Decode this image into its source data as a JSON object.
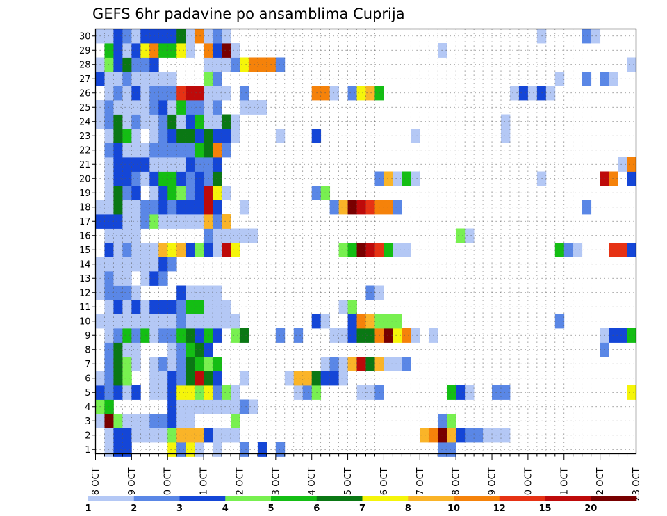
{
  "chart_data": {
    "type": "heatmap",
    "title": "GEFS 6hr padavine po ansamblima Cuprija",
    "xlabel": "",
    "ylabel": "",
    "x_ticks": [
      "08 OCT",
      "09 OCT",
      "10 OCT",
      "11 OCT",
      "12 OCT",
      "13 OCT",
      "14 OCT",
      "15 OCT",
      "16 OCT",
      "17 OCT",
      "18 OCT",
      "19 OCT",
      "20 OCT",
      "21 OCT",
      "22 OCT",
      "23 OCT"
    ],
    "y_ticks": [
      "1",
      "2",
      "3",
      "4",
      "5",
      "6",
      "7",
      "8",
      "9",
      "10",
      "11",
      "12",
      "13",
      "14",
      "15",
      "16",
      "17",
      "18",
      "19",
      "20",
      "21",
      "22",
      "23",
      "24",
      "25",
      "26",
      "27",
      "28",
      "29",
      "30"
    ],
    "time_steps_per_day": 4,
    "time_steps": 60,
    "members": 30,
    "grid": true,
    "colorbar": {
      "position": "bottom",
      "labels": [
        "1",
        "2",
        "3",
        "4",
        "5",
        "6",
        "7",
        "8",
        "10",
        "12",
        "15",
        "20"
      ],
      "colors": [
        "#b4c8f5",
        "#5a87e6",
        "#1446d7",
        "#78f050",
        "#14be14",
        "#0a7814",
        "#f5f50a",
        "#fab428",
        "#f5820a",
        "#e63214",
        "#be0a0a",
        "#780000"
      ]
    },
    "values": {
      "1": {
        "1": 1,
        "2": 3,
        "3": 3,
        "8": 7,
        "9": 2,
        "10": 7,
        "11": 1,
        "12": 14,
        "13": 1,
        "16": 2,
        "18": 3,
        "20": 2,
        "38": 2,
        "39": 2
      },
      "2": {
        "1": 1,
        "2": 3,
        "3": 3,
        "4": 1,
        "5": 1,
        "6": 1,
        "7": 1,
        "8": 4,
        "9": 8,
        "10": 8,
        "11": 8,
        "12": 3,
        "13": 1,
        "14": 1,
        "15": 1,
        "36": 8,
        "37": 9,
        "38": 12,
        "39": 8,
        "40": 3,
        "41": 2,
        "42": 2,
        "43": 1,
        "44": 1,
        "45": 1
      },
      "3": {
        "0": 1,
        "1": 12,
        "2": 4,
        "3": 1,
        "4": 1,
        "5": 1,
        "6": 2,
        "7": 2,
        "8": 3,
        "9": 1,
        "10": 1,
        "15": 4,
        "38": 2,
        "39": 4
      },
      "4": {
        "0": 4,
        "1": 5,
        "8": 3,
        "9": 1,
        "10": 1,
        "11": 1,
        "12": 1,
        "13": 1,
        "14": 1,
        "15": 1,
        "16": 2,
        "17": 1
      },
      "5": {
        "0": 3,
        "1": 2,
        "2": 3,
        "3": 1,
        "4": 3,
        "6": 1,
        "7": 1,
        "8": 3,
        "9": 7,
        "10": 7,
        "11": 4,
        "12": 7,
        "13": 2,
        "14": 4,
        "15": 1,
        "22": 1,
        "23": 2,
        "24": 4,
        "29": 1,
        "30": 1,
        "31": 2,
        "39": 5,
        "40": 3,
        "41": 1,
        "44": 2,
        "45": 2,
        "59": 7
      },
      "6": {
        "0": 1,
        "1": 2,
        "2": 6,
        "3": 4,
        "6": 1,
        "7": 1,
        "8": 3,
        "9": 2,
        "10": 6,
        "11": 11,
        "12": 6,
        "13": 3,
        "16": 1,
        "21": 1,
        "22": 8,
        "23": 8,
        "24": 6,
        "25": 3,
        "26": 3,
        "27": 1
      },
      "7": {
        "1": 2,
        "2": 6,
        "3": 4,
        "4": 1,
        "6": 1,
        "7": 2,
        "8": 1,
        "9": 2,
        "10": 6,
        "11": 5,
        "12": 4,
        "13": 5,
        "25": 1,
        "26": 2,
        "27": 1,
        "28": 8,
        "29": 11,
        "30": 6,
        "31": 8,
        "32": 1,
        "33": 1,
        "34": 2
      },
      "8": {
        "1": 2,
        "2": 6,
        "3": 1,
        "4": 1,
        "8": 1,
        "9": 2,
        "10": 5,
        "11": 6,
        "12": 3,
        "56": 2
      },
      "9": {
        "1": 1,
        "2": 2,
        "3": 5,
        "4": 2,
        "5": 5,
        "6": 1,
        "7": 2,
        "8": 2,
        "9": 5,
        "10": 6,
        "11": 3,
        "12": 5,
        "13": 3,
        "15": 4,
        "16": 6,
        "20": 2,
        "22": 2,
        "26": 1,
        "27": 1,
        "28": 3,
        "29": 6,
        "30": 6,
        "31": 9,
        "32": 12,
        "33": 7,
        "34": 9,
        "35": 1,
        "37": 1,
        "56": 1,
        "57": 3,
        "58": 3,
        "59": 5
      },
      "10": {
        "0": 1,
        "1": 1,
        "2": 1,
        "3": 1,
        "4": 1,
        "5": 1,
        "6": 1,
        "7": 1,
        "8": 1,
        "9": 2,
        "10": 1,
        "11": 1,
        "12": 1,
        "13": 1,
        "14": 1,
        "15": 1,
        "24": 3,
        "25": 1,
        "28": 3,
        "29": 9,
        "30": 8,
        "31": 4,
        "32": 4,
        "33": 4,
        "51": 2
      },
      "11": {
        "1": 1,
        "2": 3,
        "3": 1,
        "4": 3,
        "5": 1,
        "6": 3,
        "7": 3,
        "8": 3,
        "9": 2,
        "10": 5,
        "11": 5,
        "12": 1,
        "13": 1,
        "14": 1,
        "27": 1,
        "28": 4
      },
      "12": {
        "0": 1,
        "1": 2,
        "2": 2,
        "3": 2,
        "4": 1,
        "9": 3,
        "10": 1,
        "11": 1,
        "12": 1,
        "13": 1,
        "30": 2,
        "31": 1
      },
      "13": {
        "0": 1,
        "1": 2,
        "2": 1,
        "3": 1,
        "5": 1,
        "6": 3,
        "7": 2
      },
      "14": {
        "0": 1,
        "1": 1,
        "2": 1,
        "3": 1,
        "4": 1,
        "5": 1,
        "6": 1,
        "7": 3,
        "8": 2
      },
      "15": {
        "1": 3,
        "2": 1,
        "3": 2,
        "4": 1,
        "5": 1,
        "6": 1,
        "7": 8,
        "8": 7,
        "9": 8,
        "10": 3,
        "11": 4,
        "12": 3,
        "13": 1,
        "14": 11,
        "15": 7,
        "27": 4,
        "28": 5,
        "29": 12,
        "30": 11,
        "31": 10,
        "32": 5,
        "33": 1,
        "34": 1,
        "51": 5,
        "52": 2,
        "53": 1,
        "57": 10,
        "58": 10,
        "59": 3
      },
      "16": {
        "1": 1,
        "2": 1,
        "3": 1,
        "4": 1,
        "12": 2,
        "13": 1,
        "14": 1,
        "15": 1,
        "16": 1,
        "17": 1,
        "40": 4,
        "41": 1
      },
      "17": {
        "0": 3,
        "1": 3,
        "2": 3,
        "3": 1,
        "4": 1,
        "5": 2,
        "6": 4,
        "7": 1,
        "8": 1,
        "9": 1,
        "10": 1,
        "11": 1,
        "12": 8,
        "13": 2,
        "14": 8
      },
      "18": {
        "0": 1,
        "1": 1,
        "2": 6,
        "3": 1,
        "4": 1,
        "5": 2,
        "6": 2,
        "7": 3,
        "8": 2,
        "9": 3,
        "10": 3,
        "11": 3,
        "12": 11,
        "13": 3,
        "16": 1,
        "26": 2,
        "27": 8,
        "28": 12,
        "29": 11,
        "30": 10,
        "31": 9,
        "32": 9,
        "33": 2,
        "54": 2
      },
      "19": {
        "1": 1,
        "2": 6,
        "3": 2,
        "4": 3,
        "6": 1,
        "7": 3,
        "8": 5,
        "9": 4,
        "10": 2,
        "11": 3,
        "12": 11,
        "13": 7,
        "14": 1,
        "24": 2,
        "25": 4
      },
      "20": {
        "1": 1,
        "2": 3,
        "3": 3,
        "4": 2,
        "5": 1,
        "6": 3,
        "7": 5,
        "8": 5,
        "9": 3,
        "10": 2,
        "11": 3,
        "12": 2,
        "13": 6,
        "31": 2,
        "32": 8,
        "33": 1,
        "34": 5,
        "35": 1,
        "49": 1,
        "56": 11,
        "57": 9,
        "59": 3
      },
      "21": {
        "1": 1,
        "2": 3,
        "3": 3,
        "4": 3,
        "5": 3,
        "6": 1,
        "7": 1,
        "8": 1,
        "9": 1,
        "10": 3,
        "11": 2,
        "12": 2,
        "13": 3,
        "58": 1,
        "59": 9
      },
      "22": {
        "1": 2,
        "2": 3,
        "3": 1,
        "4": 1,
        "5": 1,
        "6": 2,
        "7": 2,
        "8": 2,
        "9": 2,
        "10": 2,
        "11": 5,
        "12": 6,
        "13": 9,
        "14": 2
      },
      "23": {
        "1": 1,
        "2": 6,
        "3": 5,
        "4": 1,
        "6": 1,
        "7": 2,
        "8": 3,
        "9": 6,
        "10": 6,
        "11": 3,
        "12": 6,
        "13": 3,
        "14": 3,
        "15": 1,
        "20": 1,
        "24": 3,
        "35": 1,
        "45": 1
      },
      "24": {
        "0": 1,
        "1": 2,
        "2": 6,
        "3": 1,
        "4": 2,
        "5": 1,
        "6": 1,
        "7": 2,
        "8": 6,
        "9": 1,
        "10": 3,
        "11": 5,
        "12": 1,
        "13": 1,
        "14": 6,
        "15": 1,
        "45": 1
      },
      "25": {
        "0": 1,
        "1": 2,
        "2": 1,
        "3": 1,
        "4": 1,
        "5": 1,
        "6": 2,
        "7": 3,
        "8": 1,
        "9": 5,
        "10": 2,
        "11": 2,
        "12": 1,
        "13": 2,
        "16": 1,
        "17": 1,
        "18": 1
      },
      "26": {
        "1": 1,
        "2": 2,
        "3": 1,
        "4": 3,
        "5": 1,
        "6": 2,
        "7": 2,
        "8": 2,
        "9": 10,
        "10": 11,
        "11": 11,
        "12": 1,
        "13": 1,
        "14": 1,
        "16": 2,
        "24": 9,
        "25": 9,
        "26": 1,
        "28": 2,
        "29": 7,
        "30": 8,
        "31": 5,
        "46": 1,
        "47": 3,
        "48": 1,
        "49": 3,
        "50": 1
      },
      "27": {
        "0": 3,
        "1": 1,
        "2": 1,
        "3": 2,
        "4": 1,
        "5": 1,
        "6": 1,
        "7": 1,
        "8": 1,
        "12": 4,
        "13": 2,
        "51": 1,
        "54": 2,
        "56": 2,
        "57": 1
      },
      "28": {
        "0": 1,
        "1": 4,
        "2": 3,
        "3": 6,
        "4": 2,
        "5": 2,
        "6": 3,
        "12": 1,
        "13": 1,
        "14": 1,
        "15": 2,
        "16": 7,
        "17": 9,
        "18": 9,
        "19": 9,
        "20": 2,
        "59": 1
      },
      "29": {
        "1": 5,
        "2": 3,
        "3": 1,
        "4": 3,
        "5": 7,
        "6": 9,
        "7": 5,
        "8": 5,
        "9": 7,
        "10": 1,
        "12": 9,
        "13": 3,
        "14": 12,
        "15": 1,
        "38": 1
      },
      "30": {
        "0": 1,
        "1": 1,
        "2": 3,
        "3": 2,
        "4": 1,
        "5": 3,
        "6": 3,
        "7": 3,
        "8": 3,
        "9": 6,
        "10": 1,
        "11": 9,
        "12": 1,
        "13": 2,
        "14": 1,
        "49": 1,
        "54": 2,
        "55": 1
      }
    }
  }
}
